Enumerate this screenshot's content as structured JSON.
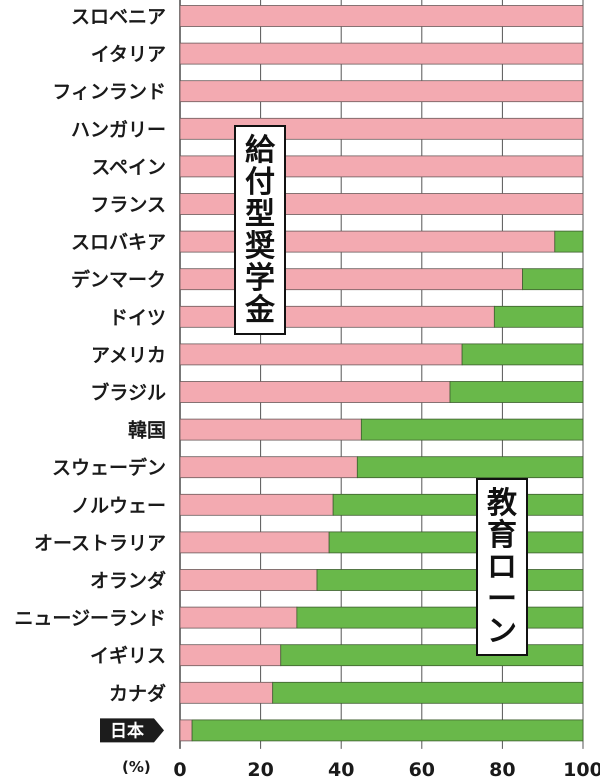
{
  "chart_data": {
    "type": "bar",
    "stacked": true,
    "orientation": "horizontal",
    "categories": [
      "スロベニア",
      "イタリア",
      "フィンランド",
      "ハンガリー",
      "スペイン",
      "フランス",
      "スロバキア",
      "デンマーク",
      "ドイツ",
      "アメリカ",
      "ブラジル",
      "韓国",
      "スウェーデン",
      "ノルウェー",
      "オーストラリア",
      "オランダ",
      "ニュージーランド",
      "イギリス",
      "カナダ",
      "日本"
    ],
    "series": [
      {
        "name": "給付型奨学金",
        "values": [
          100,
          100,
          100,
          100,
          100,
          100,
          93,
          85,
          78,
          70,
          67,
          45,
          44,
          38,
          37,
          34,
          29,
          25,
          23,
          3
        ]
      },
      {
        "name": "教育ローン",
        "values": [
          0,
          0,
          0,
          0,
          0,
          0,
          7,
          15,
          22,
          30,
          33,
          55,
          56,
          62,
          63,
          66,
          71,
          75,
          77,
          97
        ]
      }
    ],
    "xlim": [
      0,
      100
    ],
    "xticks": [
      "0",
      "20",
      "40",
      "60",
      "80",
      "100"
    ],
    "unit_label": "(%)",
    "highlight_category": "日本",
    "annotations": [
      {
        "text": "給付型奨学金",
        "series": "給付型奨学金"
      },
      {
        "text": "教育ローン",
        "series": "教育ローン"
      }
    ],
    "colors": {
      "scholarship": "#f3aab1",
      "loan": "#69b84a",
      "highlight_bg": "#1c1c1c"
    },
    "grid": true
  }
}
